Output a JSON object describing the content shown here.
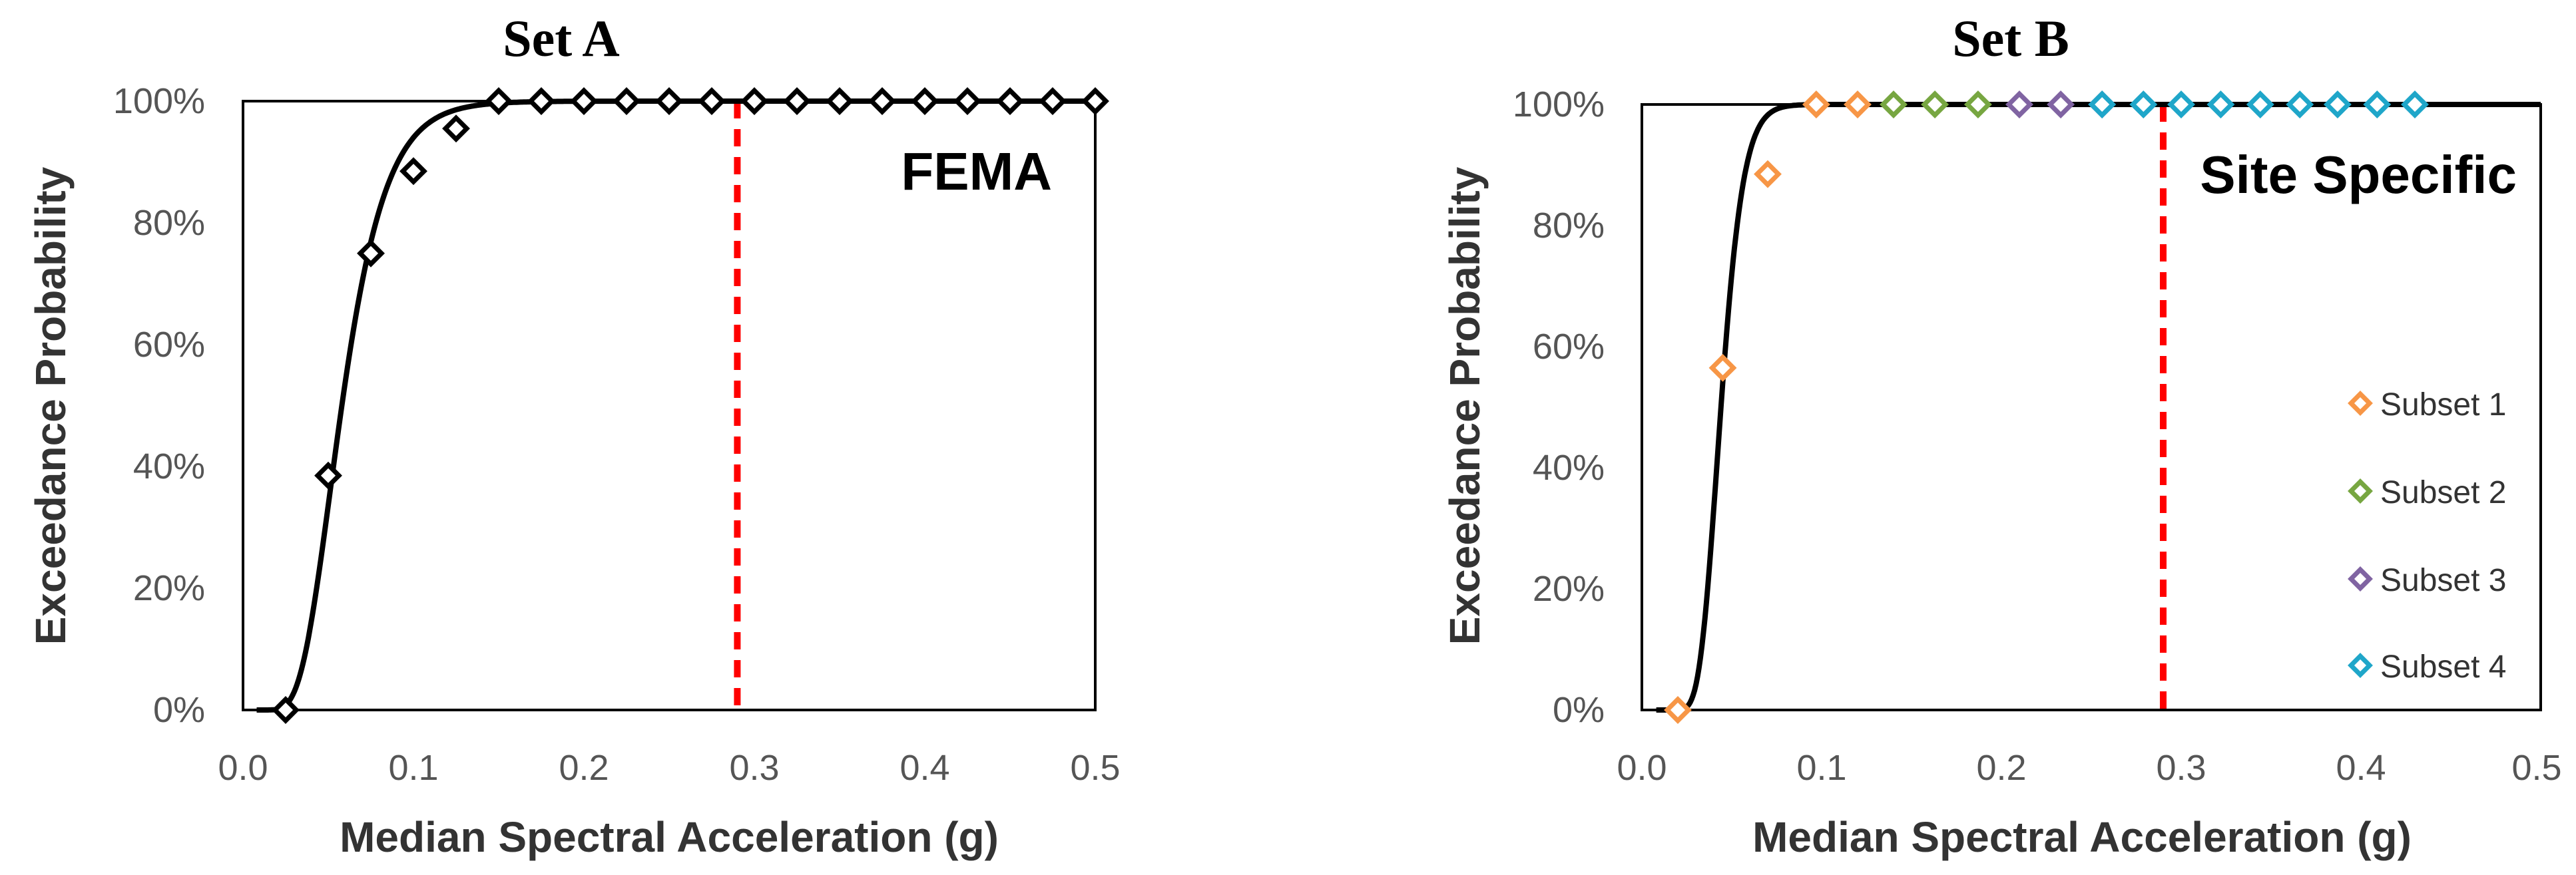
{
  "chart_data": [
    {
      "type": "scatter",
      "title": "Set A",
      "annotation": "FEMA",
      "xlabel": "Median Spectral Acceleration (g)",
      "ylabel": "Exceedance Probability",
      "xlim": [
        0,
        0.5
      ],
      "ylim": [
        0,
        1
      ],
      "x_ticks": [
        "0.0",
        "0.1",
        "0.2",
        "0.3",
        "0.4",
        "0.5"
      ],
      "y_ticks": [
        "0%",
        "20%",
        "40%",
        "60%",
        "80%",
        "100%"
      ],
      "grid": false,
      "marker": "diamond",
      "series": [
        {
          "color": "#000000",
          "points": [
            [
              0.025,
              0.0
            ],
            [
              0.05,
              0.385
            ],
            [
              0.075,
              0.75
            ],
            [
              0.1,
              0.885
            ],
            [
              0.125,
              0.955
            ],
            [
              0.15,
              1.0
            ],
            [
              0.175,
              1.0
            ],
            [
              0.2,
              1.0
            ],
            [
              0.225,
              1.0
            ],
            [
              0.25,
              1.0
            ],
            [
              0.275,
              1.0
            ],
            [
              0.3,
              1.0
            ],
            [
              0.325,
              1.0
            ],
            [
              0.35,
              1.0
            ],
            [
              0.375,
              1.0
            ],
            [
              0.4,
              1.0
            ],
            [
              0.425,
              1.0
            ],
            [
              0.45,
              1.0
            ],
            [
              0.475,
              1.0
            ],
            [
              0.5,
              1.0
            ]
          ]
        }
      ],
      "fitted_curve": {
        "type": "lognormal_cdf",
        "median": 0.058,
        "beta": 0.35,
        "color": "#000000"
      },
      "vertical_line": {
        "x": 0.29,
        "color": "#ff0000",
        "style": "dashed"
      }
    },
    {
      "type": "scatter",
      "title": "Set B",
      "annotation": "Site Specific",
      "xlabel": "Median Spectral Acceleration (g)",
      "ylabel": "Exceedance Probability",
      "xlim": [
        0,
        0.5
      ],
      "ylim": [
        0,
        1
      ],
      "x_ticks": [
        "0.0",
        "0.1",
        "0.2",
        "0.3",
        "0.4",
        "0.5"
      ],
      "y_ticks": [
        "0%",
        "20%",
        "40%",
        "60%",
        "80%",
        "100%"
      ],
      "grid": false,
      "marker": "diamond",
      "legend_position": "right",
      "series": [
        {
          "name": "Subset 1",
          "color": "#f79646",
          "points": [
            [
              0.02,
              0.0
            ],
            [
              0.045,
              0.565
            ],
            [
              0.07,
              0.885
            ],
            [
              0.097,
              1.0
            ],
            [
              0.12,
              1.0
            ]
          ]
        },
        {
          "name": "Subset 2",
          "color": "#77a641",
          "points": [
            [
              0.14,
              1.0
            ],
            [
              0.163,
              1.0
            ],
            [
              0.187,
              1.0
            ]
          ]
        },
        {
          "name": "Subset 3",
          "color": "#8064a2",
          "points": [
            [
              0.21,
              1.0
            ],
            [
              0.233,
              1.0
            ],
            [
              0.256,
              1.0
            ]
          ]
        },
        {
          "name": "Subset 4",
          "color": "#1fa6c9",
          "points": [
            [
              0.256,
              1.0
            ],
            [
              0.279,
              1.0
            ],
            [
              0.3,
              1.0
            ],
            [
              0.322,
              1.0
            ],
            [
              0.344,
              1.0
            ],
            [
              0.366,
              1.0
            ],
            [
              0.387,
              1.0
            ],
            [
              0.409,
              1.0
            ],
            [
              0.43,
              1.0
            ]
          ]
        }
      ],
      "fitted_curve": {
        "type": "lognormal_cdf",
        "median": 0.044,
        "beta": 0.22,
        "color": "#000000"
      },
      "vertical_line": {
        "x": 0.29,
        "color": "#ff0000",
        "style": "dashed"
      }
    }
  ]
}
